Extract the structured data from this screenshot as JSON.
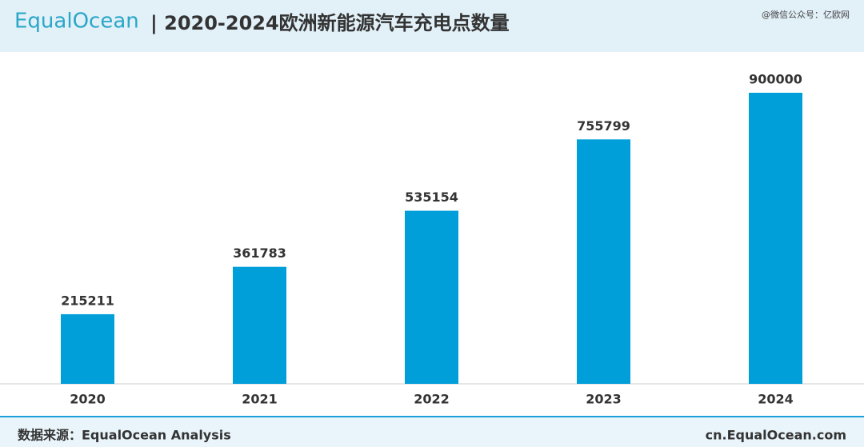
{
  "header": {
    "logo": "EqualOcean",
    "watermark": "@微信公众号：亿欧网"
  },
  "chart_data": {
    "type": "bar",
    "title": "| 2020-2024欧洲新能源汽车充电点数量",
    "categories": [
      "2020",
      "2021",
      "2022",
      "2023",
      "2024"
    ],
    "values": [
      215211,
      361783,
      535154,
      755799,
      900000
    ],
    "color": "#009fda"
  },
  "footer": {
    "source": "数据来源：EqualOcean Analysis",
    "site": "cn.EqualOcean.com"
  }
}
